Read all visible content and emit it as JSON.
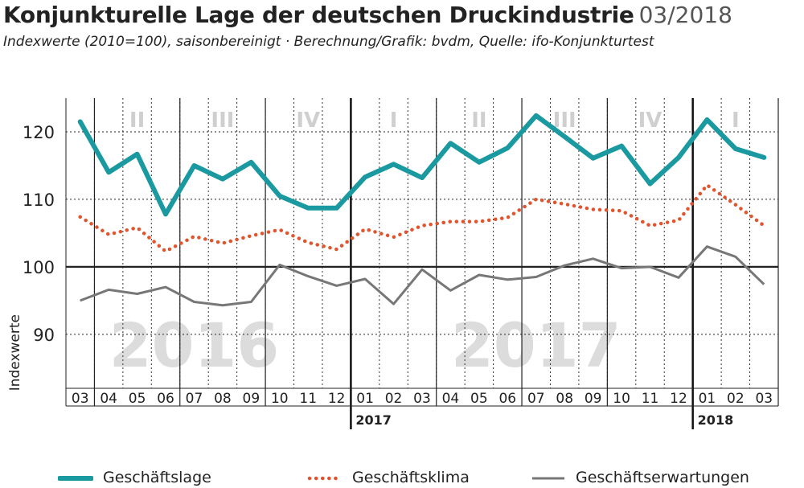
{
  "header": {
    "title": "Konjunkturelle Lage der deutschen Druckindustrie",
    "date": "03/2018",
    "subtitle": "Indexwerte (2010=100), saisonbereinigt · Berechnung/Grafik: bvdm, Quelle: ifo-Konjunkturtest"
  },
  "colors": {
    "geschaeftslage": "#1a9aa0",
    "geschaeftsklima": "#e0552e",
    "geschaeftserwartungen": "#777777",
    "quarter_label": "#cfcfcf",
    "year_watermark": "#dcdcdc"
  },
  "chart_data": {
    "type": "line",
    "ylabel": "Indexwerte",
    "ylim": [
      82,
      125
    ],
    "yticks": [
      90,
      100,
      110,
      120
    ],
    "x": [
      "03",
      "04",
      "05",
      "06",
      "07",
      "08",
      "09",
      "10",
      "11",
      "12",
      "01",
      "02",
      "03",
      "04",
      "05",
      "06",
      "07",
      "08",
      "09",
      "10",
      "11",
      "12",
      "01",
      "02",
      "03"
    ],
    "year_labels": [
      {
        "label": "2017",
        "index": 10
      },
      {
        "label": "2018",
        "index": 22
      }
    ],
    "year_watermarks": [
      {
        "label": "2016",
        "index": 4
      },
      {
        "label": "2017",
        "index": 16
      }
    ],
    "quarter_labels": [
      {
        "label": "II",
        "index": 2
      },
      {
        "label": "III",
        "index": 5
      },
      {
        "label": "IV",
        "index": 8
      },
      {
        "label": "I",
        "index": 11
      },
      {
        "label": "II",
        "index": 14
      },
      {
        "label": "III",
        "index": 17
      },
      {
        "label": "IV",
        "index": 20
      },
      {
        "label": "I",
        "index": 23
      }
    ],
    "series": [
      {
        "name": "Geschäftslage",
        "style": "solid-thick",
        "values": [
          121.5,
          114,
          116.7,
          107.8,
          115,
          113,
          115.5,
          110.5,
          108.7,
          108.7,
          113.3,
          115.2,
          113.2,
          118.3,
          115.5,
          117.6,
          122.4,
          119.3,
          116.1,
          117.9,
          112.3,
          116.2,
          121.8,
          117.5,
          116.2
        ]
      },
      {
        "name": "Geschäftsklima",
        "style": "dotted",
        "values": [
          107.4,
          104.8,
          105.8,
          102.3,
          104.5,
          103.5,
          104.6,
          105.5,
          103.6,
          102.6,
          105.6,
          104.4,
          106.1,
          106.7,
          106.7,
          107.3,
          110,
          109.3,
          108.5,
          108.3,
          106.1,
          106.9,
          112.1,
          109.2,
          106.1
        ]
      },
      {
        "name": "Geschäftserwartungen",
        "style": "solid-thin",
        "values": [
          95,
          96.6,
          96,
          97,
          94.8,
          94.3,
          94.8,
          100.3,
          98.6,
          97.2,
          98.2,
          94.5,
          99.6,
          96.5,
          98.8,
          98.1,
          98.5,
          100.2,
          101.2,
          99.8,
          100,
          98.4,
          103,
          101.5,
          97.4
        ]
      }
    ],
    "grid": true,
    "legend": "bottom"
  }
}
